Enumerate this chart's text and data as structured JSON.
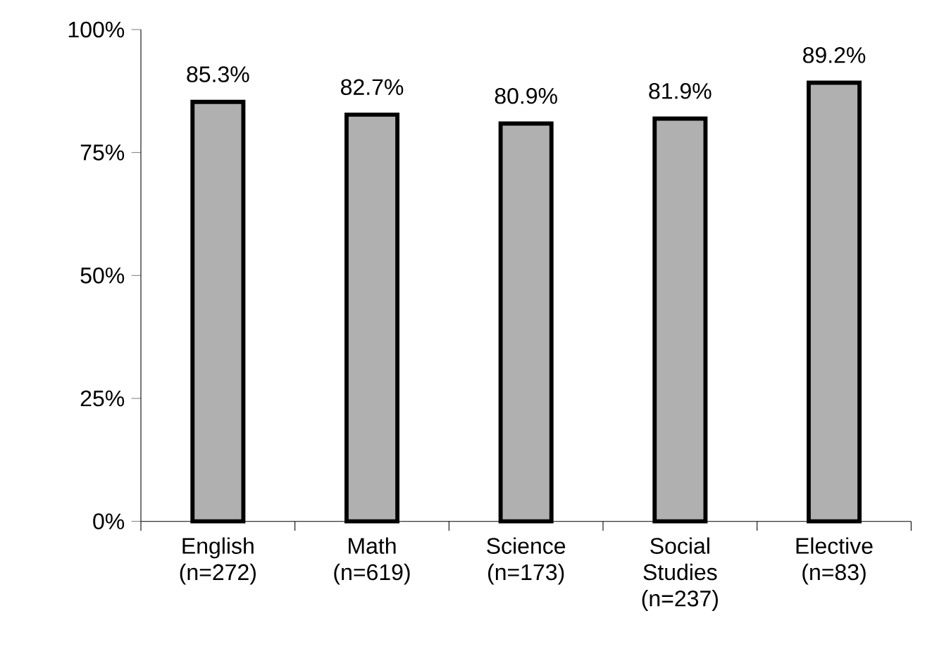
{
  "chart_data": {
    "type": "bar",
    "categories": [
      "English (n=272)",
      "Math (n=619)",
      "Science (n=173)",
      "Social Studies (n=237)",
      "Elective (n=83)"
    ],
    "values": [
      85.3,
      82.7,
      80.9,
      81.9,
      89.2
    ],
    "value_labels": [
      "85.3%",
      "82.7%",
      "80.9%",
      "81.9%",
      "89.2%"
    ],
    "color": "#b0b0b0",
    "ylim": [
      0,
      100
    ],
    "yticks": [
      {
        "value": 0,
        "label": "0%"
      },
      {
        "value": 25,
        "label": "25%"
      },
      {
        "value": 50,
        "label": "50%"
      },
      {
        "value": 75,
        "label": "75%"
      },
      {
        "value": 100,
        "label": "100%"
      }
    ],
    "grid": false
  }
}
